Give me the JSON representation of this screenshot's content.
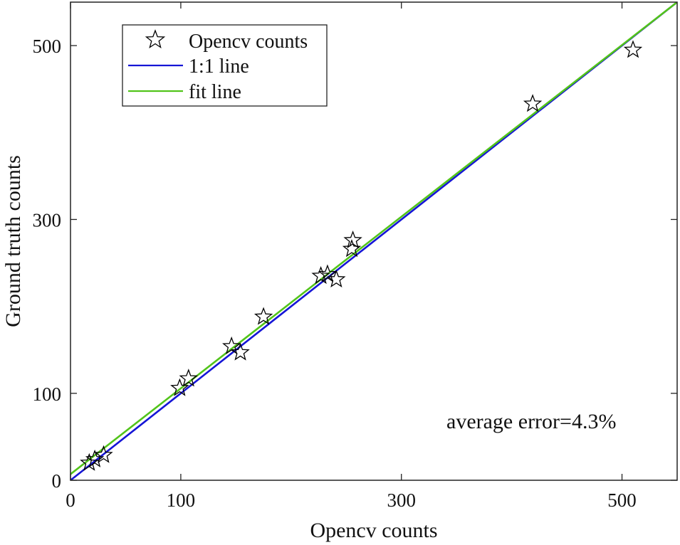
{
  "chart_data": {
    "type": "scatter",
    "title": "",
    "xlabel": "Opencv counts",
    "ylabel": "Ground truth counts",
    "xlim": [
      0,
      550
    ],
    "ylim": [
      0,
      550
    ],
    "xticks": [
      0,
      100,
      300,
      500
    ],
    "yticks": [
      0,
      100,
      300,
      500
    ],
    "grid": false,
    "legend_position": "upper left",
    "legend": [
      {
        "label": "Opencv counts",
        "marker": "star",
        "color": "#000000"
      },
      {
        "label": "1:1 line",
        "line": true,
        "color": "#1515d6"
      },
      {
        "label": "fit line",
        "line": true,
        "color": "#52c41a"
      }
    ],
    "series": [
      {
        "name": "Opencv counts",
        "type": "scatter",
        "marker": "star",
        "points": [
          [
            17,
            20
          ],
          [
            22,
            24
          ],
          [
            30,
            29
          ],
          [
            99,
            106
          ],
          [
            107,
            117
          ],
          [
            146,
            154
          ],
          [
            154,
            147
          ],
          [
            175,
            188
          ],
          [
            227,
            235
          ],
          [
            233,
            237
          ],
          [
            241,
            231
          ],
          [
            255,
            266
          ],
          [
            256,
            276
          ],
          [
            419,
            433
          ],
          [
            510,
            495
          ]
        ]
      },
      {
        "name": "1:1 line",
        "type": "line",
        "x": [
          0,
          550
        ],
        "y": [
          0,
          550
        ],
        "color": "#1515d6"
      },
      {
        "name": "fit line",
        "type": "line",
        "x": [
          0,
          550
        ],
        "y": [
          7,
          550
        ],
        "color": "#52c41a"
      }
    ],
    "annotations": [
      {
        "text": "average error=4.3%",
        "x": 340,
        "y": 65
      }
    ]
  },
  "labels": {
    "xlabel": "Opencv counts",
    "ylabel": "Ground truth counts",
    "legend_0": "Opencv counts",
    "legend_1": "1:1 line",
    "legend_2": "fit line",
    "annotation": "average error=4.3%"
  }
}
